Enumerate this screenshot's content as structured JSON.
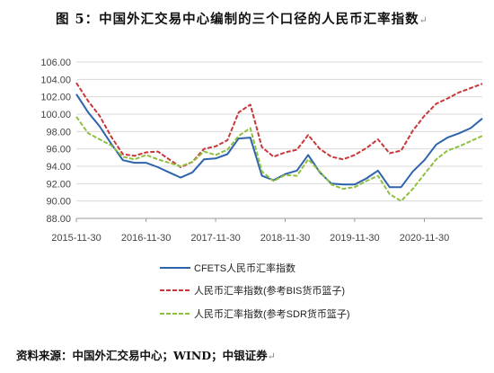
{
  "figure": {
    "title": "图 5：中国外汇交易中心编制的三个口径的人民币汇率指数",
    "title_mark": "↵",
    "source": "资料来源：中国外汇交易中心；WIND；中银证券",
    "source_mark": "↵"
  },
  "chart_data": {
    "type": "line",
    "title": "",
    "xlabel": "",
    "ylabel": "",
    "ylim": [
      88,
      106
    ],
    "yticks": [
      "106.00",
      "104.00",
      "102.00",
      "100.00",
      "98.00",
      "96.00",
      "94.00",
      "92.00",
      "90.00",
      "88.00"
    ],
    "xlim": [
      "2015-11-30",
      "2021-09-30"
    ],
    "xticks": [
      "2015-11-30",
      "2016-11-30",
      "2017-11-30",
      "2018-11-30",
      "2019-11-30",
      "2020-11-30"
    ],
    "grid": "horizontal",
    "legend_position": "bottom",
    "x": [
      "2015-11-30",
      "2016-01-31",
      "2016-03-31",
      "2016-05-31",
      "2016-07-31",
      "2016-09-30",
      "2016-11-30",
      "2017-01-31",
      "2017-03-31",
      "2017-05-31",
      "2017-07-31",
      "2017-09-30",
      "2017-11-30",
      "2018-01-31",
      "2018-03-31",
      "2018-05-31",
      "2018-07-31",
      "2018-09-30",
      "2018-11-30",
      "2019-01-31",
      "2019-03-31",
      "2019-05-31",
      "2019-07-31",
      "2019-09-30",
      "2019-11-30",
      "2020-01-31",
      "2020-03-31",
      "2020-05-31",
      "2020-07-31",
      "2020-09-30",
      "2020-11-30",
      "2021-01-31",
      "2021-03-31",
      "2021-05-31",
      "2021-07-31",
      "2021-09-30"
    ],
    "series": [
      {
        "name": "CFETS人民币汇率指数",
        "color": "#2e64ad",
        "style": "solid",
        "values": [
          102.3,
          100.2,
          98.6,
          96.6,
          94.7,
          94.4,
          94.4,
          93.9,
          93.3,
          92.7,
          93.3,
          94.8,
          94.9,
          95.4,
          97.2,
          97.3,
          92.9,
          92.4,
          93.1,
          93.5,
          95.3,
          93.3,
          92.0,
          91.9,
          91.9,
          92.6,
          93.5,
          91.6,
          91.6,
          93.4,
          94.7,
          96.5,
          97.3,
          97.8,
          98.4,
          99.5
        ]
      },
      {
        "name": "人民币汇率指数(参考BIS货币篮子)",
        "color": "#c8373b",
        "style": "dashed",
        "values": [
          103.6,
          101.5,
          99.8,
          97.4,
          95.4,
          95.2,
          95.6,
          95.7,
          94.8,
          93.9,
          94.5,
          96.0,
          96.3,
          97.0,
          100.2,
          101.1,
          96.2,
          95.1,
          95.6,
          95.9,
          97.6,
          96.0,
          95.1,
          94.8,
          95.3,
          96.1,
          97.1,
          95.5,
          95.8,
          98.1,
          99.8,
          101.2,
          101.8,
          102.5,
          103.0,
          103.5
        ]
      },
      {
        "name": "人民币汇率指数(参考SDR货币篮子)",
        "color": "#8fbf3f",
        "style": "dashed",
        "values": [
          99.7,
          97.8,
          97.1,
          96.4,
          95.1,
          94.8,
          95.3,
          94.8,
          94.4,
          94.0,
          94.5,
          95.7,
          95.3,
          95.9,
          97.5,
          98.4,
          93.4,
          92.3,
          93.0,
          92.9,
          94.8,
          93.4,
          91.9,
          91.4,
          91.6,
          92.3,
          92.9,
          90.8,
          90.0,
          91.4,
          93.1,
          94.8,
          95.8,
          96.3,
          96.9,
          97.5
        ]
      }
    ]
  }
}
